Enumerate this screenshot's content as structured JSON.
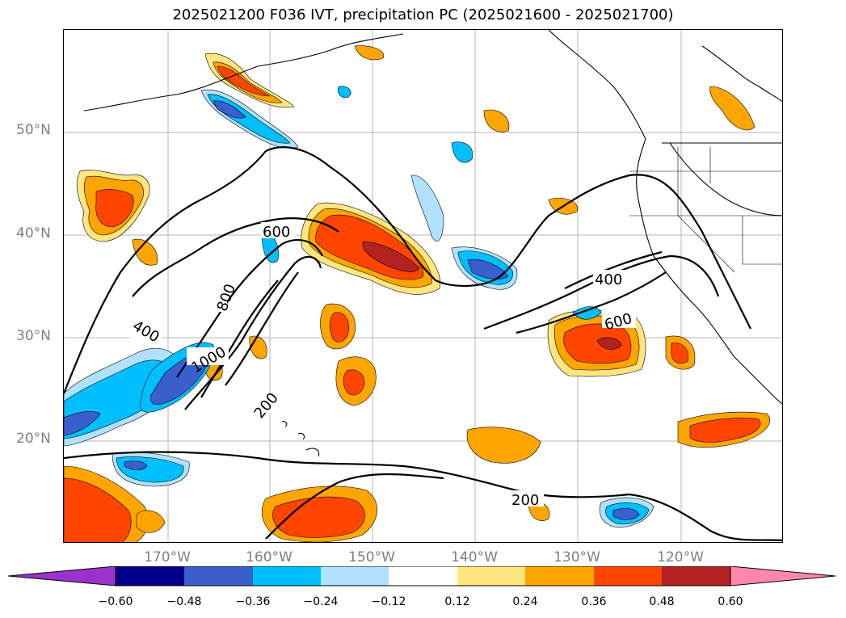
{
  "title": "2025021200 F036 IVT, precipitation PC (2025021600 - 2025021700)",
  "lat_labels": [
    "50°N",
    "40°N",
    "30°N",
    "20°N"
  ],
  "lon_labels": [
    "170°W",
    "160°W",
    "150°W",
    "140°W",
    "130°W",
    "120°W"
  ],
  "contour_labels": [
    "600",
    "800",
    "400",
    "1000",
    "200",
    "400",
    "600",
    "200"
  ],
  "colorbar": {
    "ticks": [
      "−0.60",
      "−0.48",
      "−0.36",
      "−0.24",
      "−0.12",
      "0.12",
      "0.24",
      "0.36",
      "0.48",
      "0.60"
    ],
    "colors": [
      "#9933cc",
      "#00008b",
      "#3a5fcd",
      "#00bfff",
      "#b0e2ff",
      "#ffffff",
      "#ffe680",
      "#ffa500",
      "#ff4500",
      "#b22222",
      "#ff88aa"
    ]
  }
}
